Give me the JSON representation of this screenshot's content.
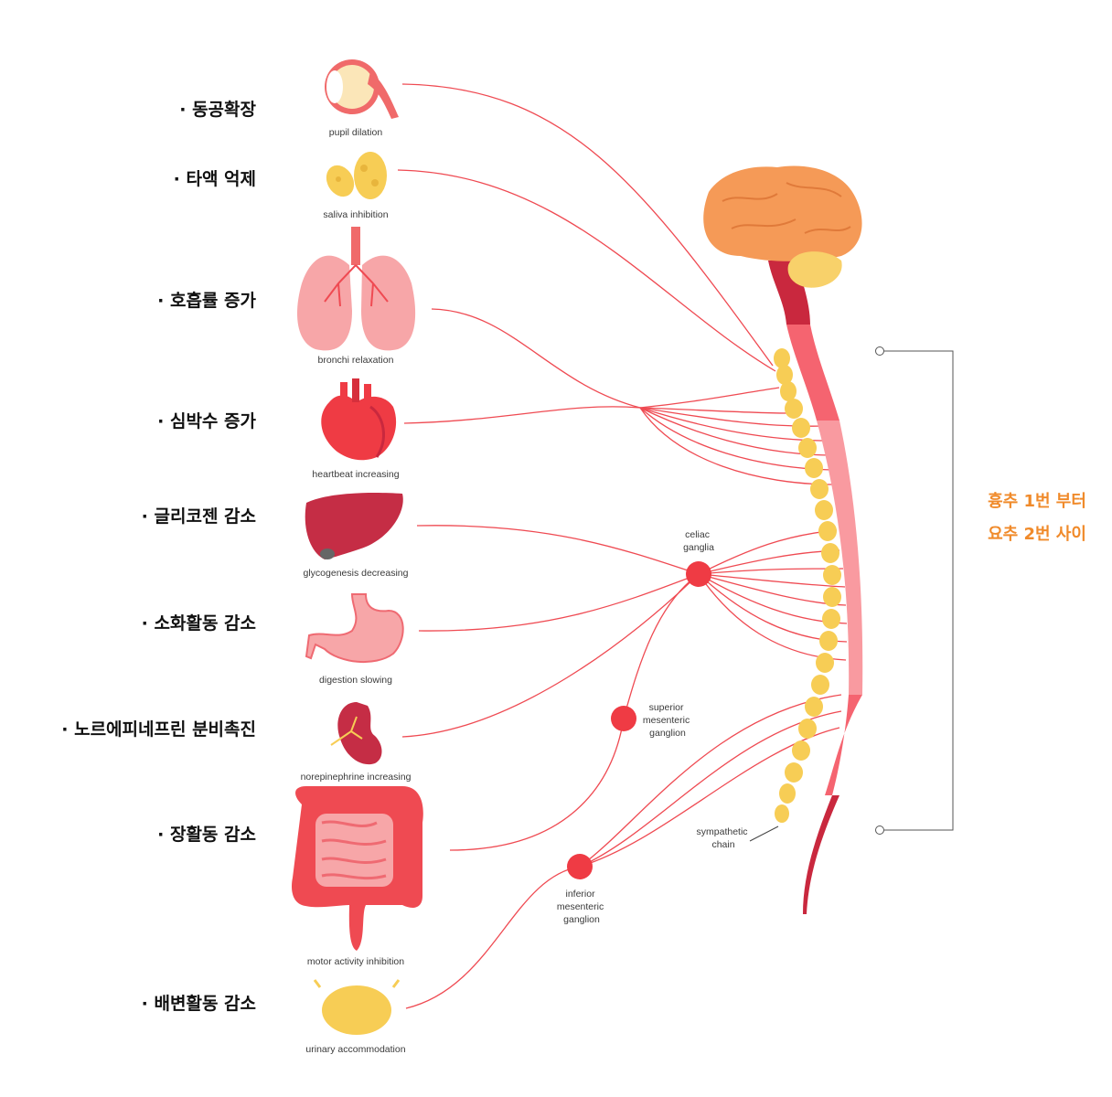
{
  "organs": [
    {
      "id": "eye",
      "label": "· 동공확장",
      "caption": "pupil dilation",
      "icon": "eye-icon"
    },
    {
      "id": "salivary",
      "label": "· 타액 억제",
      "caption": "saliva inhibition",
      "icon": "salivary-gland-icon"
    },
    {
      "id": "lungs",
      "label": "· 호흡률 증가",
      "caption": "bronchi relaxation",
      "icon": "lungs-icon"
    },
    {
      "id": "heart",
      "label": "· 심박수 증가",
      "caption": "heartbeat increasing",
      "icon": "heart-icon"
    },
    {
      "id": "liver",
      "label": "· 글리코젠 감소",
      "caption": "glycogenesis decreasing",
      "icon": "liver-icon"
    },
    {
      "id": "stomach",
      "label": "· 소화활동 감소",
      "caption": "digestion slowing",
      "icon": "stomach-icon"
    },
    {
      "id": "kidney",
      "label": "· 노르에피네프린 분비촉진",
      "caption": "norepinephrine increasing",
      "icon": "kidney-icon"
    },
    {
      "id": "intestine",
      "label": "· 장활동 감소",
      "caption": "motor activity inhibition",
      "icon": "intestine-icon"
    },
    {
      "id": "bladder",
      "label": "· 배변활동 감소",
      "caption": "urinary accommodation",
      "icon": "bladder-icon"
    }
  ],
  "ganglia": {
    "celiac": [
      "celiac",
      "ganglia"
    ],
    "superior": [
      "superior",
      "mesenteric",
      "ganglion"
    ],
    "inferior": [
      "inferior",
      "mesenteric",
      "ganglion"
    ],
    "chain": [
      "sympathetic",
      "chain"
    ]
  },
  "range": {
    "line1": "흉추 1번 부터",
    "line2": "요추 2번 사이"
  },
  "colors": {
    "nerve": "#ef4a52",
    "ganglion": "#ef3b44",
    "chain": "#f7cd55",
    "brain": "#f59a57",
    "cerebellum": "#f8d16a",
    "spinal_dark": "#c9283e",
    "spinal_mid": "#f56470",
    "spinal_light": "#f99aa0",
    "accent": "#f08a2a"
  }
}
